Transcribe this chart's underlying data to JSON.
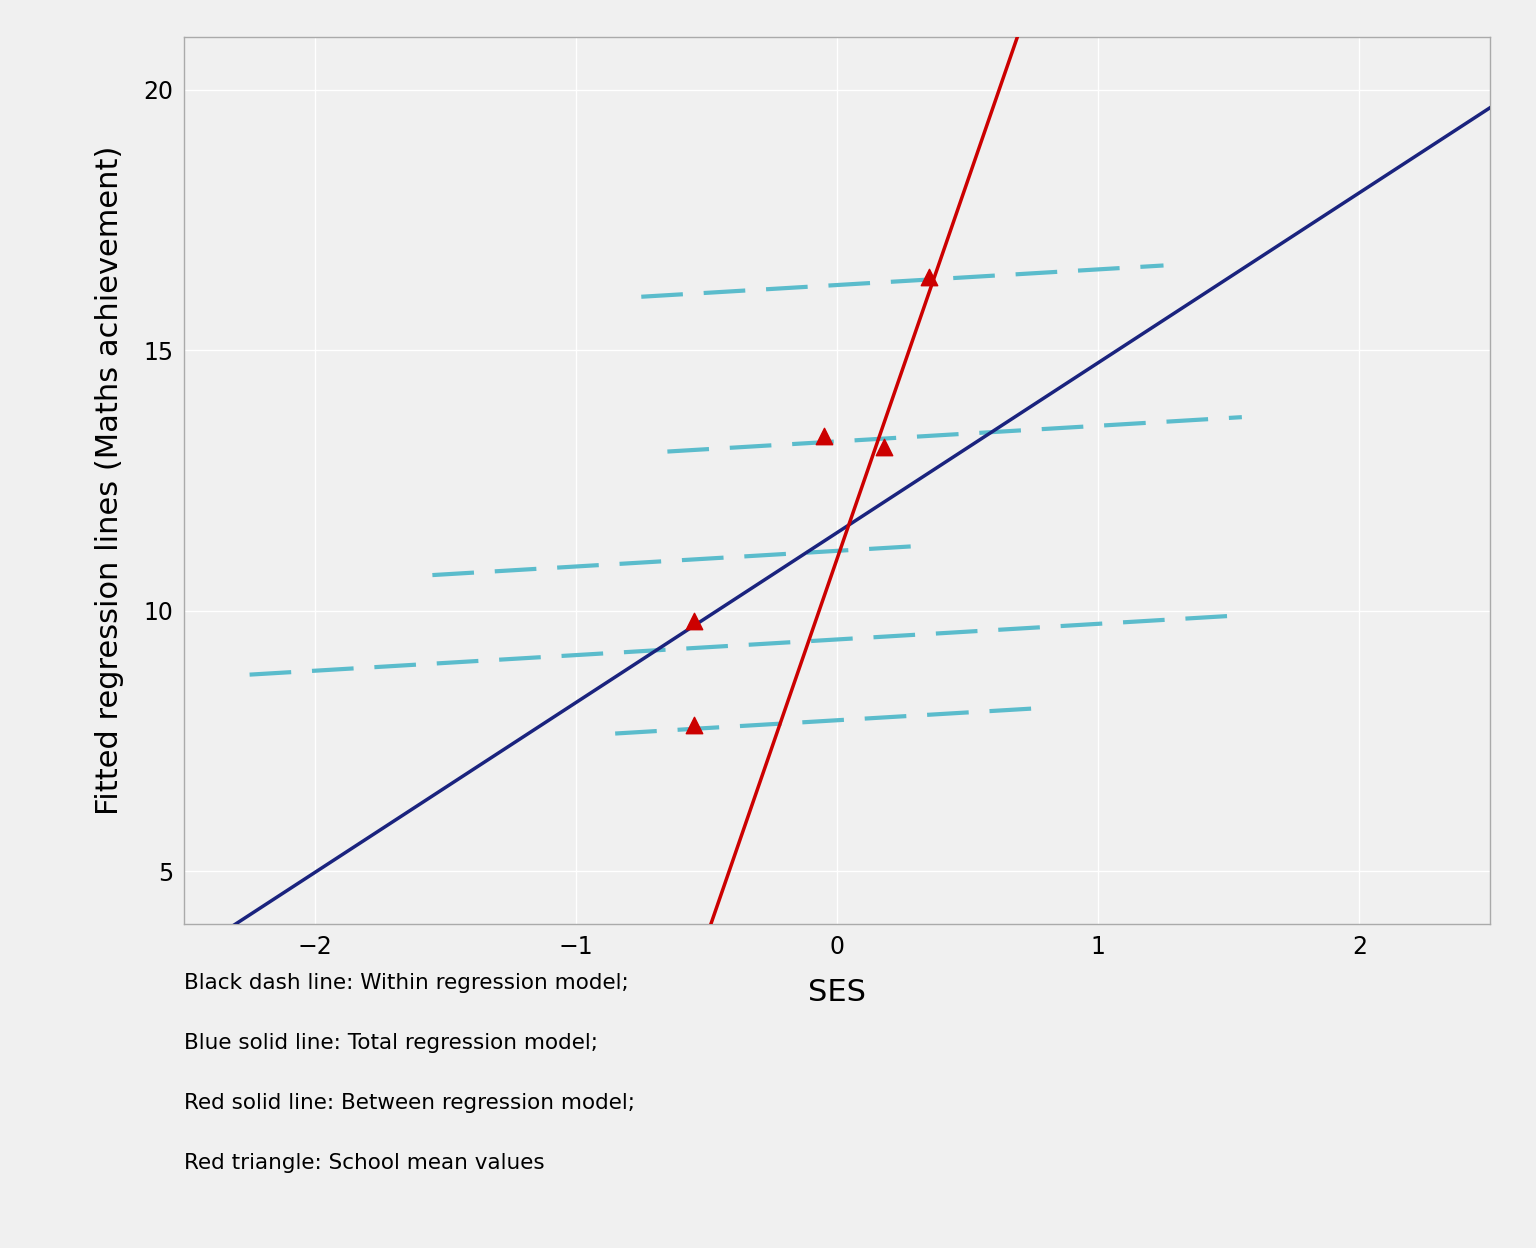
{
  "xlabel": "SES",
  "ylabel": "Fitted regression lines (Maths achievement)",
  "xlim": [
    -2.5,
    2.5
  ],
  "ylim": [
    4,
    21
  ],
  "xticks": [
    -2,
    -1,
    0,
    1,
    2
  ],
  "yticks": [
    5,
    10,
    15,
    20
  ],
  "background_color": "#f0f0f0",
  "grid_color": "#ffffff",
  "total_line": {
    "intercept": 11.5,
    "slope": 3.26,
    "color": "#1a237e",
    "linewidth": 2.5
  },
  "between_line": {
    "intercept": 11.0,
    "slope": 14.5,
    "color": "#cc0000",
    "linewidth": 2.5,
    "xmin": -1.02,
    "xmax": 0.7
  },
  "within_lines": [
    {
      "intercept": 16.25,
      "slope": 0.3,
      "xmin": -0.75,
      "xmax": 1.25
    },
    {
      "intercept": 13.25,
      "slope": 0.3,
      "xmin": -0.65,
      "xmax": 1.55
    },
    {
      "intercept": 11.15,
      "slope": 0.3,
      "xmin": -1.55,
      "xmax": 0.3
    },
    {
      "intercept": 9.45,
      "slope": 0.3,
      "xmin": -2.25,
      "xmax": 1.55
    },
    {
      "intercept": 7.9,
      "slope": 0.3,
      "xmin": -0.85,
      "xmax": 0.75
    }
  ],
  "within_color": "#5bbccc",
  "within_linewidth": 3.0,
  "school_means": [
    [
      -0.55,
      9.8
    ],
    [
      -0.55,
      7.8
    ],
    [
      -0.05,
      13.35
    ],
    [
      0.18,
      13.15
    ],
    [
      0.35,
      16.4
    ]
  ],
  "triangle_color": "#cc0000",
  "triangle_size": 140,
  "legend_text": [
    "Black dash line: Within regression model;",
    "Blue solid line: Total regression model;",
    "Red solid line: Between regression model;",
    "Red triangle: School mean values"
  ],
  "legend_fontsize": 15.5
}
